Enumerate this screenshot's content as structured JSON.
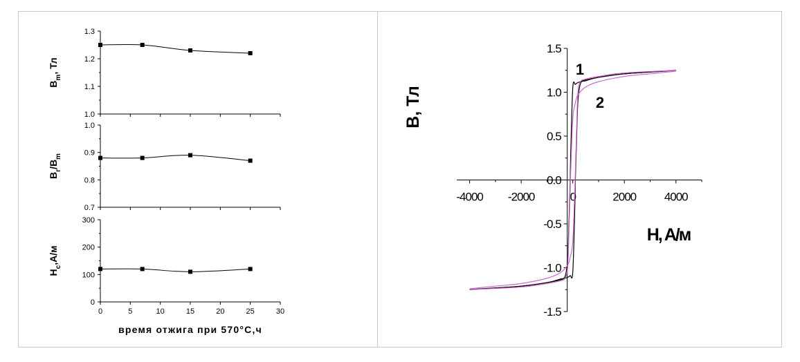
{
  "chart_data": [
    {
      "type": "line",
      "panel": "Bm",
      "ylabel": "B_m, Тл",
      "ylabel_parts": [
        "B",
        "m",
        ", Тл"
      ],
      "ylim": [
        1.0,
        1.3
      ],
      "yticks": [
        "1.0",
        "1.1",
        "1.2",
        "1.3"
      ],
      "xlim": [
        0,
        30
      ],
      "x": [
        0,
        7,
        15,
        25
      ],
      "series": [
        {
          "values": [
            1.25,
            1.25,
            1.23,
            1.22
          ]
        }
      ]
    },
    {
      "type": "line",
      "panel": "BrBm",
      "ylabel": "B_r/B_m",
      "ylabel_parts": [
        "B",
        "r",
        "/B",
        "m"
      ],
      "ylim": [
        0.7,
        1.0
      ],
      "yticks": [
        "0.7",
        "0.8",
        "0.9",
        "1.0"
      ],
      "xlim": [
        0,
        30
      ],
      "x": [
        0,
        7,
        15,
        25
      ],
      "series": [
        {
          "values": [
            0.88,
            0.88,
            0.89,
            0.87
          ]
        }
      ]
    },
    {
      "type": "line",
      "panel": "Hc",
      "ylabel": "H_c, A/м",
      "ylabel_parts": [
        "H",
        "c",
        ",A/м"
      ],
      "ylim": [
        0,
        300
      ],
      "yticks": [
        "0",
        "100",
        "200",
        "300"
      ],
      "xlim": [
        0,
        30
      ],
      "xticks": [
        "0",
        "5",
        "10",
        "15",
        "20",
        "25",
        "30"
      ],
      "xlabel": "время отжига при 570°С,ч",
      "x": [
        0,
        7,
        15,
        25
      ],
      "series": [
        {
          "values": [
            120,
            120,
            110,
            120
          ]
        }
      ]
    },
    {
      "type": "line",
      "panel": "hysteresis",
      "xlabel": "H, A/м",
      "ylabel": "B, Тл",
      "xlim": [
        -4500,
        5000
      ],
      "ylim": [
        -1.5,
        1.5
      ],
      "xticks": [
        "-4000",
        "-2000",
        "0",
        "2000",
        "4000"
      ],
      "yticks": [
        "-1.5",
        "-1.0",
        "-0.5",
        "0.0",
        "0.5",
        "1.0",
        "1.5"
      ],
      "annotations": [
        "1",
        "2"
      ],
      "series": [
        {
          "label": "1",
          "color": "#000000",
          "hc": 110,
          "upper": {
            "H": [
              -4000,
              -2000,
              -1000,
              -500,
              -300,
              -200,
              -150,
              -120,
              -100,
              -80,
              0,
              100,
              200,
              500,
              1000,
              2000,
              3000,
              4000
            ],
            "B": [
              -1.25,
              -1.21,
              -1.17,
              -1.13,
              -1.1,
              -0.9,
              -0.5,
              -0.2,
              0.0,
              0.3,
              1.05,
              1.09,
              1.11,
              1.14,
              1.17,
              1.21,
              1.23,
              1.25
            ]
          }
        },
        {
          "label": "2",
          "color": "#cc66cc",
          "hc": 110,
          "upper": {
            "H": [
              -4000,
              -2000,
              -1000,
              -500,
              -300,
              -200,
              -150,
              -120,
              -100,
              -80,
              0,
              100,
              200,
              500,
              1000,
              2000,
              3000,
              4000
            ],
            "B": [
              -1.25,
              -1.22,
              -1.18,
              -1.15,
              -1.12,
              -1.0,
              -0.6,
              -0.3,
              -0.1,
              0.1,
              0.7,
              0.88,
              0.97,
              1.06,
              1.12,
              1.18,
              1.21,
              1.24
            ]
          }
        }
      ]
    }
  ]
}
